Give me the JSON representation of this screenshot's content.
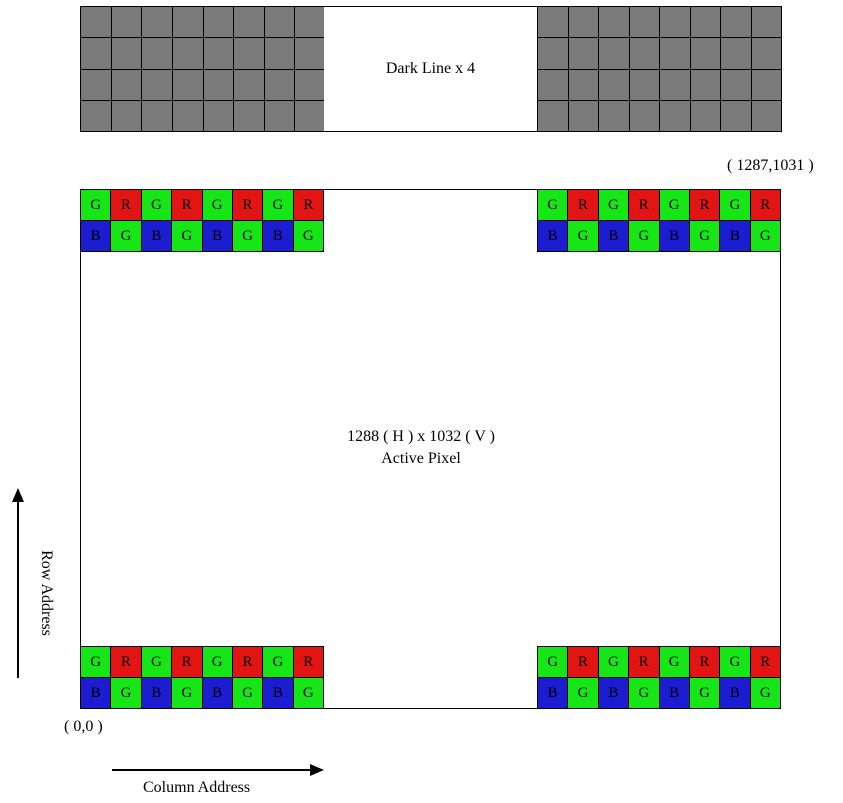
{
  "dark_line_label": "Dark Line x 4",
  "corner_top_right": "( 1287,1031 )",
  "corner_bottom_left": "( 0,0 )",
  "active_pixel": {
    "size_line": "1288 ( H ) x 1032 ( V )",
    "label": "Active Pixel"
  },
  "row_address_label": "Row Address",
  "column_address_label": "Column Address",
  "bayer_rows": [
    [
      "G",
      "R",
      "G",
      "R",
      "G",
      "R",
      "G",
      "R"
    ],
    [
      "B",
      "G",
      "B",
      "G",
      "B",
      "G",
      "B",
      "G"
    ]
  ],
  "colors": {
    "G": "#16e616",
    "R": "#e31414",
    "B": "#1c1cd1",
    "dark": "#7b7b7b"
  }
}
